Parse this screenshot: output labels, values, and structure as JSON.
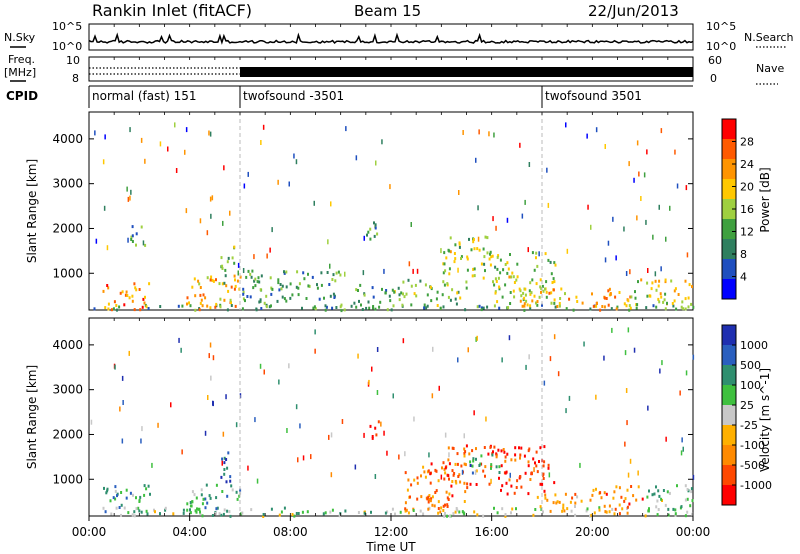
{
  "header": {
    "station": "Rankin Inlet (fitACF)",
    "beam": "Beam 15",
    "date": "22/Jun/2013"
  },
  "strips": {
    "nsky_label": "N.Sky",
    "nsearch_label": "N.Search",
    "freq_label_1": "Freq.",
    "freq_label_2": "[MHz]",
    "nave_label": "Nave",
    "cpid_label": "CPID",
    "noise_ticks": [
      "10^5",
      "10^0"
    ],
    "freq_ticks": [
      "10",
      "8"
    ],
    "nave_ticks": [
      "60",
      "0"
    ],
    "cpid_segments": [
      {
        "label": "normal (fast) 151",
        "start_hour": 0
      },
      {
        "label": "twofsound -3501",
        "start_hour": 6
      },
      {
        "label": "twofsound 3501",
        "start_hour": 18
      }
    ]
  },
  "xaxis": {
    "label": "Time UT",
    "ticks": [
      "00:00",
      "04:00",
      "08:00",
      "12:00",
      "16:00",
      "20:00",
      "00:00"
    ],
    "range_hours": [
      0,
      24
    ]
  },
  "colors": {
    "power": [
      "#0000ff",
      "#1f4fbf",
      "#2f7f5f",
      "#3fa03f",
      "#9fd040",
      "#ffc800",
      "#ff9400",
      "#ff5a00",
      "#ff0000"
    ],
    "velocity": [
      "#ff0000",
      "#ff4800",
      "#ff8a00",
      "#ffb000",
      "#c8c8c8",
      "#3fc03f",
      "#2f8f6f",
      "#2a5fbf",
      "#1f2fb0"
    ]
  },
  "chart_data": [
    {
      "type": "heatmap",
      "title": "",
      "xlabel": "Time UT",
      "ylabel": "Slant Range [km]",
      "x_range_hours": [
        0,
        24
      ],
      "ylim": [
        180,
        4600
      ],
      "yticks": [
        1000,
        2000,
        3000,
        4000
      ],
      "colorbar": {
        "label": "Power [dB]",
        "ticks": [
          "4",
          "8",
          "12",
          "16",
          "20",
          "24",
          "28"
        ],
        "range": [
          0,
          32
        ]
      },
      "echo_regions": [
        {
          "t0": 0.0,
          "t1": 24.0,
          "r0": 200,
          "r1": 320,
          "level": 0.3
        },
        {
          "t0": 0.5,
          "t1": 2.5,
          "r0": 200,
          "r1": 800,
          "level": 0.75
        },
        {
          "t0": 1.5,
          "t1": 2.2,
          "r0": 1600,
          "r1": 2100,
          "level": 0.3
        },
        {
          "t0": 3.8,
          "t1": 6.0,
          "r0": 200,
          "r1": 1000,
          "level": 0.7
        },
        {
          "t0": 5.2,
          "t1": 5.8,
          "r0": 800,
          "r1": 1700,
          "level": 0.45
        },
        {
          "t0": 6.0,
          "t1": 10.0,
          "r0": 200,
          "r1": 1100,
          "level": 0.35
        },
        {
          "t0": 10.5,
          "t1": 12.0,
          "r0": 200,
          "r1": 800,
          "level": 0.35
        },
        {
          "t0": 11.0,
          "t1": 11.5,
          "r0": 1700,
          "r1": 2500,
          "level": 0.3
        },
        {
          "t0": 12.0,
          "t1": 15.0,
          "r0": 300,
          "r1": 900,
          "level": 0.45
        },
        {
          "t0": 14.0,
          "t1": 16.0,
          "r0": 900,
          "r1": 1900,
          "level": 0.5
        },
        {
          "t0": 16.0,
          "t1": 18.5,
          "r0": 300,
          "r1": 1500,
          "level": 0.5
        },
        {
          "t0": 17.0,
          "t1": 20.0,
          "r0": 250,
          "r1": 700,
          "level": 0.65
        },
        {
          "t0": 19.5,
          "t1": 21.5,
          "r0": 200,
          "r1": 700,
          "level": 0.75
        },
        {
          "t0": 21.5,
          "t1": 24.0,
          "r0": 200,
          "r1": 900,
          "level": 0.55
        }
      ]
    },
    {
      "type": "heatmap",
      "title": "",
      "xlabel": "Time UT",
      "ylabel": "Slant Range [km]",
      "x_range_hours": [
        0,
        24
      ],
      "ylim": [
        180,
        4600
      ],
      "yticks": [
        1000,
        2000,
        3000,
        4000
      ],
      "colorbar": {
        "label": "Velocity [m s^-1]",
        "ticks": [
          "1000",
          "500",
          "100",
          "25",
          "-25",
          "-100",
          "-500",
          "-1000"
        ],
        "range": [
          -1500,
          1500
        ]
      },
      "echo_regions": [
        {
          "t0": 0.0,
          "t1": 12.0,
          "r0": 200,
          "r1": 400,
          "level": 0.58
        },
        {
          "t0": 0.5,
          "t1": 2.5,
          "r0": 250,
          "r1": 900,
          "level": 0.68
        },
        {
          "t0": 3.8,
          "t1": 6.0,
          "r0": 250,
          "r1": 1000,
          "level": 0.68
        },
        {
          "t0": 5.2,
          "t1": 5.8,
          "r0": 900,
          "r1": 1700,
          "level": 0.85
        },
        {
          "t0": 11.0,
          "t1": 11.5,
          "r0": 1900,
          "r1": 2400,
          "level": 0.05
        },
        {
          "t0": 12.0,
          "t1": 24.0,
          "r0": 200,
          "r1": 400,
          "level": 0.5
        },
        {
          "t0": 12.5,
          "t1": 15.0,
          "r0": 300,
          "r1": 1400,
          "level": 0.25
        },
        {
          "t0": 14.0,
          "t1": 16.0,
          "r0": 900,
          "r1": 1800,
          "level": 0.2
        },
        {
          "t0": 15.0,
          "t1": 16.3,
          "r0": 1100,
          "r1": 1600,
          "level": 0.72
        },
        {
          "t0": 16.0,
          "t1": 18.5,
          "r0": 700,
          "r1": 1800,
          "level": 0.1
        },
        {
          "t0": 17.5,
          "t1": 20.0,
          "r0": 300,
          "r1": 700,
          "level": 0.3
        },
        {
          "t0": 20.0,
          "t1": 22.0,
          "r0": 250,
          "r1": 900,
          "level": 0.25
        },
        {
          "t0": 22.0,
          "t1": 24.0,
          "r0": 250,
          "r1": 900,
          "level": 0.6
        }
      ]
    }
  ]
}
